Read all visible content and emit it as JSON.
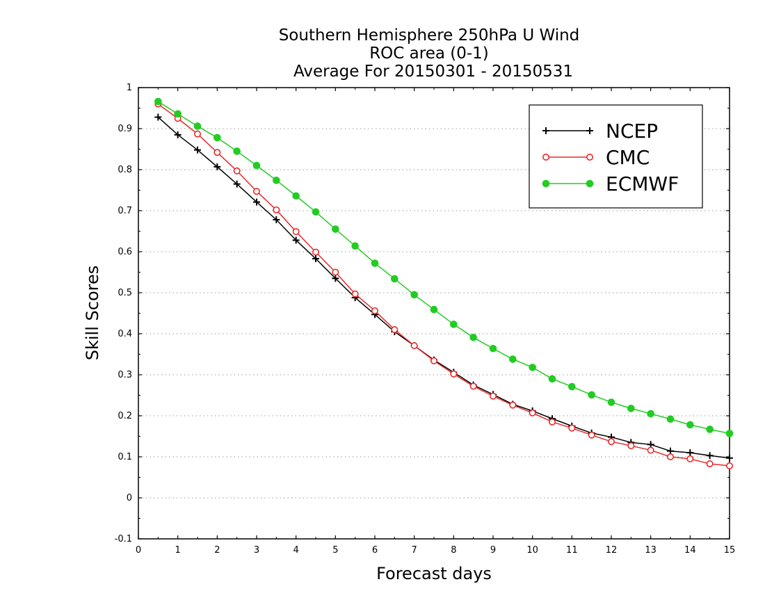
{
  "chart_data": {
    "type": "line",
    "title": [
      "Southern Hemisphere 250hPa U Wind",
      "ROC area (0-1)",
      "Average For 20150301 - 20150531"
    ],
    "xlabel": "Forecast days",
    "ylabel": "Skill Scores",
    "xlim": [
      0,
      15
    ],
    "ylim": [
      -0.1,
      1
    ],
    "xticks": [
      "0",
      "1",
      "2",
      "3",
      "4",
      "5",
      "6",
      "7",
      "8",
      "9",
      "10",
      "11",
      "12",
      "13",
      "14",
      "15"
    ],
    "yticks": [
      "-0.1",
      "0",
      "0.1",
      "0.2",
      "0.3",
      "0.4",
      "0.5",
      "0.6",
      "0.7",
      "0.8",
      "0.9",
      "1"
    ],
    "grid": true,
    "legend_position": "top-right",
    "x": [
      0.5,
      1,
      1.5,
      2,
      2.5,
      3,
      3.5,
      4,
      4.5,
      5,
      5.5,
      6,
      6.5,
      7,
      7.5,
      8,
      8.5,
      9,
      9.5,
      10,
      10.5,
      11,
      11.5,
      12,
      12.5,
      13,
      13.5,
      14,
      14.5,
      15
    ],
    "series": [
      {
        "name": "NCEP",
        "color": "#000000",
        "marker": "plus",
        "values": [
          0.928,
          0.885,
          0.848,
          0.807,
          0.765,
          0.721,
          0.678,
          0.628,
          0.583,
          0.535,
          0.488,
          0.447,
          0.405,
          0.371,
          0.336,
          0.306,
          0.275,
          0.252,
          0.228,
          0.212,
          0.193,
          0.175,
          0.158,
          0.148,
          0.135,
          0.13,
          0.114,
          0.11,
          0.103,
          0.097
        ]
      },
      {
        "name": "CMC",
        "color": "#e8282a",
        "marker": "open-circle",
        "values": [
          0.96,
          0.925,
          0.887,
          0.842,
          0.797,
          0.747,
          0.702,
          0.649,
          0.599,
          0.55,
          0.497,
          0.456,
          0.41,
          0.371,
          0.334,
          0.302,
          0.272,
          0.248,
          0.226,
          0.207,
          0.185,
          0.17,
          0.153,
          0.137,
          0.127,
          0.116,
          0.1,
          0.095,
          0.083,
          0.078
        ]
      },
      {
        "name": "ECMWF",
        "color": "#22cc22",
        "marker": "filled-circle",
        "values": [
          0.966,
          0.936,
          0.906,
          0.878,
          0.845,
          0.81,
          0.774,
          0.736,
          0.697,
          0.655,
          0.614,
          0.572,
          0.534,
          0.495,
          0.459,
          0.423,
          0.391,
          0.364,
          0.338,
          0.318,
          0.29,
          0.271,
          0.251,
          0.233,
          0.218,
          0.205,
          0.192,
          0.178,
          0.167,
          0.157
        ]
      }
    ]
  }
}
